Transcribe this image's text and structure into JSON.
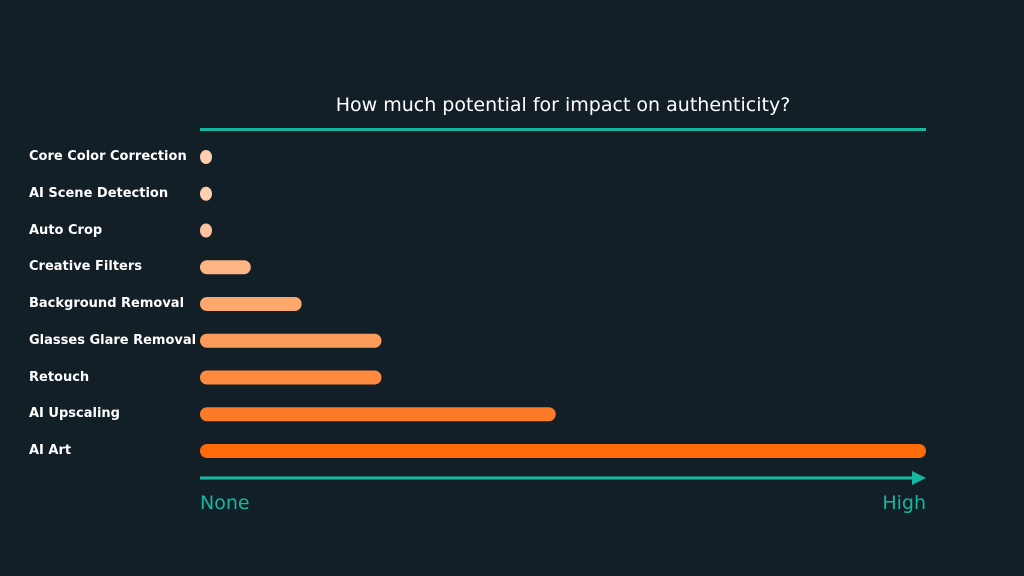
{
  "chart_data": {
    "type": "bar",
    "orientation": "horizontal",
    "title": "How much potential for impact on authenticity?",
    "categories": [
      "Core Color Correction",
      "AI Scene Detection",
      "Auto Crop",
      "Creative Filters",
      "Background Removal",
      "Glasses Glare Removal",
      "Retouch",
      "AI Upscaling",
      "AI Art"
    ],
    "values": [
      0,
      0,
      0,
      7,
      14,
      25,
      25,
      49,
      100
    ],
    "xlim": [
      0,
      100
    ],
    "x_axis": {
      "min_label": "None",
      "max_label": "High"
    },
    "colors": [
      "#fdcfae",
      "#fdcfae",
      "#fcc49e",
      "#fdb684",
      "#fda86c",
      "#fd9c5a",
      "#fd8a3e",
      "#fd7b28",
      "#ff6a0a"
    ],
    "accent_color": "#14b8a0",
    "grid": false,
    "legend": "none"
  }
}
